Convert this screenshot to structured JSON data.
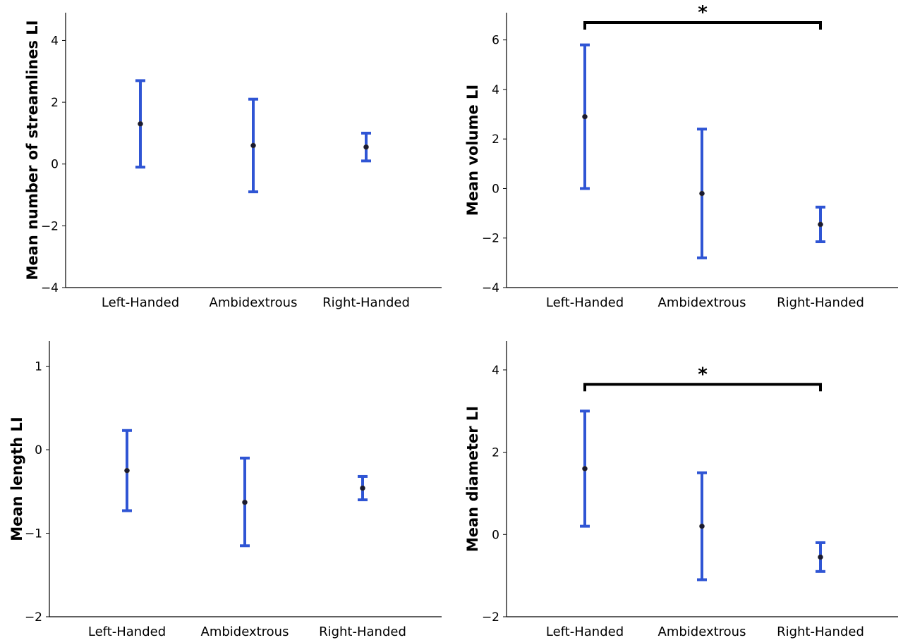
{
  "chart_data": [
    {
      "type": "errorbar",
      "ylabel": "Mean number of streamlines LI",
      "categories": [
        "Left-Handed",
        "Ambidextrous",
        "Right-Handed"
      ],
      "yticks": [
        -4,
        -2,
        0,
        2,
        4
      ],
      "ylim": [
        -4,
        4.9
      ],
      "points": [
        {
          "category": "Left-Handed",
          "mean": 1.3,
          "low": -0.1,
          "high": 2.7
        },
        {
          "category": "Ambidextrous",
          "mean": 0.6,
          "low": -0.9,
          "high": 2.1
        },
        {
          "category": "Right-Handed",
          "mean": 0.55,
          "low": 0.1,
          "high": 1.0
        }
      ],
      "significance": null
    },
    {
      "type": "errorbar",
      "ylabel": "Mean volume LI",
      "categories": [
        "Left-Handed",
        "Ambidextrous",
        "Right-Handed"
      ],
      "yticks": [
        -4,
        -2,
        0,
        2,
        4,
        6
      ],
      "ylim": [
        -4,
        7.1
      ],
      "points": [
        {
          "category": "Left-Handed",
          "mean": 2.9,
          "low": 0.0,
          "high": 5.8
        },
        {
          "category": "Ambidextrous",
          "mean": -0.2,
          "low": -2.8,
          "high": 2.4
        },
        {
          "category": "Right-Handed",
          "mean": -1.45,
          "low": -2.15,
          "high": -0.75
        }
      ],
      "significance": {
        "from": "Left-Handed",
        "to": "Right-Handed",
        "label": "*",
        "y": 6.7
      }
    },
    {
      "type": "errorbar",
      "ylabel": "Mean length LI",
      "categories": [
        "Left-Handed",
        "Ambidextrous",
        "Right-Handed"
      ],
      "yticks": [
        -2,
        -1,
        0,
        1
      ],
      "ylim": [
        -2,
        1.3
      ],
      "points": [
        {
          "category": "Left-Handed",
          "mean": -0.25,
          "low": -0.73,
          "high": 0.23
        },
        {
          "category": "Ambidextrous",
          "mean": -0.63,
          "low": -1.15,
          "high": -0.1
        },
        {
          "category": "Right-Handed",
          "mean": -0.46,
          "low": -0.6,
          "high": -0.32
        }
      ],
      "significance": null
    },
    {
      "type": "errorbar",
      "ylabel": "Mean diameter LI",
      "categories": [
        "Left-Handed",
        "Ambidextrous",
        "Right-Handed"
      ],
      "yticks": [
        -2,
        0,
        2,
        4
      ],
      "ylim": [
        -2,
        4.7
      ],
      "points": [
        {
          "category": "Left-Handed",
          "mean": 1.6,
          "low": 0.2,
          "high": 3.0
        },
        {
          "category": "Ambidextrous",
          "mean": 0.2,
          "low": -1.1,
          "high": 1.5
        },
        {
          "category": "Right-Handed",
          "mean": -0.55,
          "low": -0.9,
          "high": -0.2
        }
      ],
      "significance": {
        "from": "Left-Handed",
        "to": "Right-Handed",
        "label": "*",
        "y": 3.65
      }
    }
  ],
  "colors": {
    "errorbar": "#2f55d4",
    "mean_point": "#1a1a2e",
    "axis": "#000000"
  }
}
